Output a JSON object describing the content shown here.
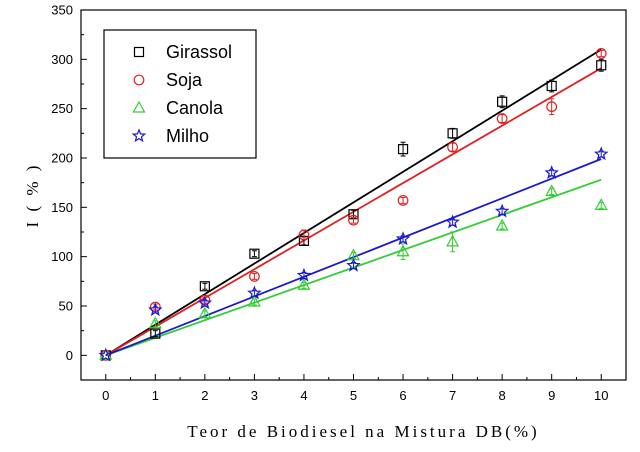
{
  "chart_data": {
    "type": "scatter",
    "xlabel": "Teor de Biodiesel na Mistura DB(%)",
    "ylabel": "I ( % )",
    "xlim": [
      -0.5,
      10.5
    ],
    "ylim": [
      -25,
      350
    ],
    "xticks": [
      0,
      1,
      2,
      3,
      4,
      5,
      6,
      7,
      8,
      9,
      10
    ],
    "yticks": [
      0,
      50,
      100,
      150,
      200,
      250,
      300,
      350
    ],
    "grid": false,
    "legend_position": "top-left",
    "x": [
      0,
      1,
      2,
      3,
      4,
      5,
      6,
      7,
      8,
      9,
      10
    ],
    "series": [
      {
        "name": "Girassol",
        "marker": "square",
        "color": "#000000",
        "values": [
          0,
          22,
          70,
          103,
          116,
          143,
          209,
          225,
          257,
          273,
          294
        ],
        "errors": [
          0,
          3,
          3,
          3,
          4,
          4,
          7,
          5,
          6,
          6,
          6
        ],
        "fit": [
          0,
          310
        ]
      },
      {
        "name": "Soja",
        "marker": "circle",
        "color": "#e02020",
        "values": [
          0,
          49,
          56,
          80,
          122,
          137,
          157,
          211,
          240,
          252,
          306
        ],
        "errors": [
          0,
          3,
          3,
          3,
          5,
          3,
          3,
          4,
          4,
          8,
          3
        ],
        "fit": [
          0,
          291
        ]
      },
      {
        "name": "Canola",
        "marker": "triangle",
        "color": "#33cc33",
        "values": [
          0,
          32,
          42,
          54,
          71,
          101,
          105,
          115,
          131,
          166,
          152
        ],
        "errors": [
          0,
          3,
          3,
          3,
          3,
          3,
          8,
          10,
          3,
          3,
          3
        ],
        "fit": [
          0,
          178
        ]
      },
      {
        "name": "Milho",
        "marker": "star",
        "color": "#1a1acc",
        "values": [
          0,
          46,
          53,
          63,
          81,
          91,
          118,
          135,
          146,
          185,
          204
        ],
        "errors": [
          0,
          3,
          3,
          3,
          3,
          3,
          3,
          3,
          3,
          3,
          3
        ],
        "fit": [
          0,
          199
        ]
      }
    ]
  }
}
